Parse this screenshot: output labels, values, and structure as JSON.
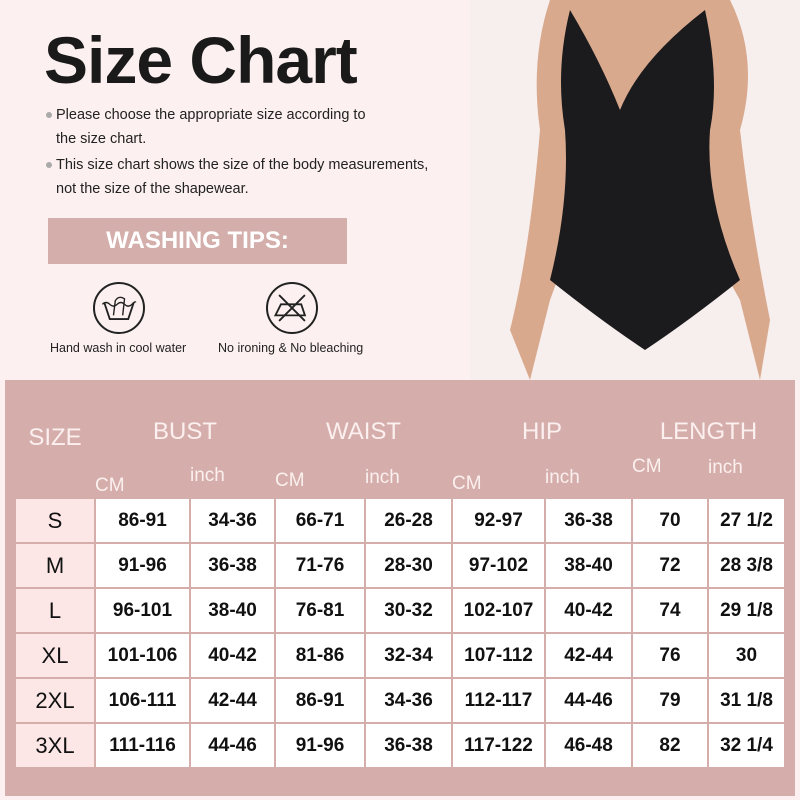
{
  "title": "Size Chart",
  "notes": [
    "Please choose the appropriate size according to",
    "the size chart.",
    "This size chart shows the size of the body measurements,",
    "not the size of the shapewear."
  ],
  "washing": {
    "title": "WASHING TIPS:",
    "items": [
      {
        "icon": "hand-wash-icon",
        "label": "Hand wash in cool water"
      },
      {
        "icon": "no-iron-no-bleach-icon",
        "label": "No ironing & No bleaching"
      }
    ]
  },
  "colors": {
    "header": "#d5aeab",
    "size_col": "#fce6e6",
    "background": "#fcf1f0"
  },
  "table": {
    "size_label": "SIZE",
    "groups": [
      "BUST",
      "WAIST",
      "HIP",
      "LENGTH"
    ],
    "units": [
      "CM",
      "inch",
      "CM",
      "inch",
      "CM",
      "inch",
      "CM",
      "inch"
    ],
    "rows": [
      [
        "S",
        "86-91",
        "34-36",
        "66-71",
        "26-28",
        "92-97",
        "36-38",
        "70",
        "27 1/2"
      ],
      [
        "M",
        "91-96",
        "36-38",
        "71-76",
        "28-30",
        "97-102",
        "38-40",
        "72",
        "28 3/8"
      ],
      [
        "L",
        "96-101",
        "38-40",
        "76-81",
        "30-32",
        "102-107",
        "40-42",
        "74",
        "29 1/8"
      ],
      [
        "XL",
        "101-106",
        "40-42",
        "81-86",
        "32-34",
        "107-112",
        "42-44",
        "76",
        "30"
      ],
      [
        "2XL",
        "106-111",
        "42-44",
        "86-91",
        "34-36",
        "112-117",
        "44-46",
        "79",
        "31 1/8"
      ],
      [
        "3XL",
        "111-116",
        "44-46",
        "91-96",
        "36-38",
        "117-122",
        "46-48",
        "82",
        "32 1/4"
      ]
    ]
  }
}
